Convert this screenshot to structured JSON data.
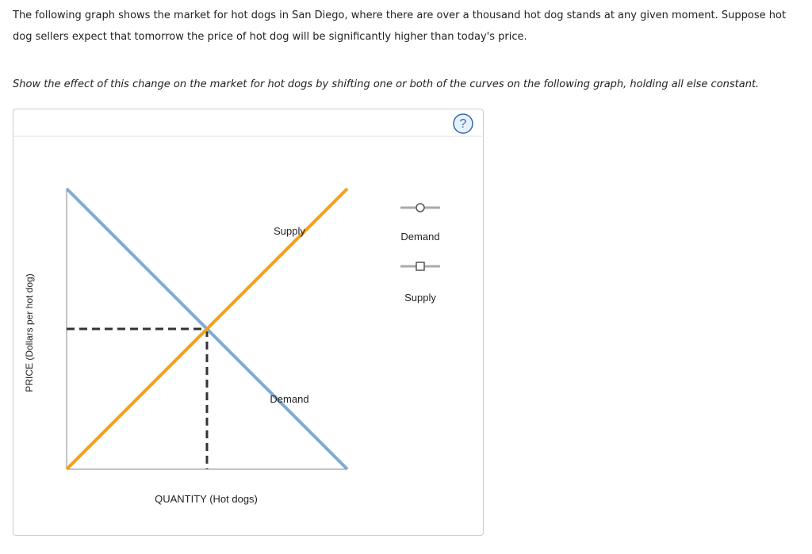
{
  "question": {
    "text": "The following graph shows the market for hot dogs in San Diego, where there are over a thousand hot dog stands at any given moment. Suppose hot dog sellers expect that tomorrow the price of hot dog will be significantly higher than today's price.",
    "instruction": "Show the effect of this change on the market for hot dogs by shifting one or both of the curves on the following graph, holding all else constant."
  },
  "graph": {
    "help": "?",
    "y_axis_label": "PRICE (Dollars per hot dog)",
    "x_axis_label": "QUANTITY (Hot dogs)",
    "curve_labels": [
      "Supply",
      "Demand"
    ],
    "legend": [
      "Demand",
      "Supply"
    ]
  }
}
